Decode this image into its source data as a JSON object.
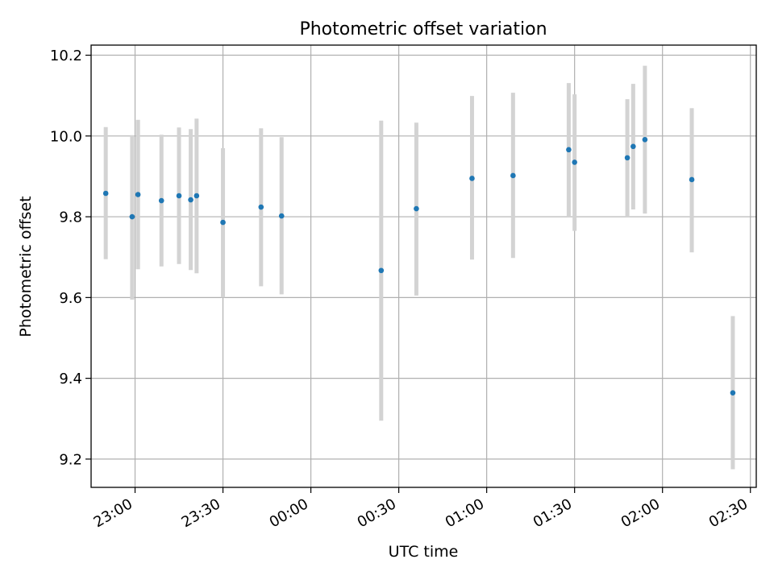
{
  "chart_data": {
    "type": "scatter",
    "title": "Photometric offset variation",
    "xlabel": "UTC time",
    "ylabel": "Photometric offset",
    "x_ticks": [
      "23:00",
      "23:30",
      "00:00",
      "00:30",
      "01:00",
      "01:30",
      "02:00",
      "02:30"
    ],
    "y_ticks": [
      "9.2",
      "9.4",
      "9.6",
      "9.8",
      "10.0",
      "10.2"
    ],
    "xlim": [
      "22:45",
      "02:32"
    ],
    "ylim": [
      9.13,
      10.225
    ],
    "grid": true,
    "series": [
      {
        "marker_color": "#1f77b4",
        "errorbar_color": "#d3d3d3",
        "points": [
          {
            "t": "22:50",
            "y": 9.858,
            "lo": 9.695,
            "hi": 10.022
          },
          {
            "t": "22:59",
            "y": 9.8,
            "lo": 9.595,
            "hi": 10.002
          },
          {
            "t": "23:01",
            "y": 9.855,
            "lo": 9.67,
            "hi": 10.04
          },
          {
            "t": "23:09",
            "y": 9.84,
            "lo": 9.677,
            "hi": 10.003
          },
          {
            "t": "23:15",
            "y": 9.852,
            "lo": 9.683,
            "hi": 10.021
          },
          {
            "t": "23:19",
            "y": 9.842,
            "lo": 9.668,
            "hi": 10.017
          },
          {
            "t": "23:21",
            "y": 9.852,
            "lo": 9.66,
            "hi": 10.043
          },
          {
            "t": "23:30",
            "y": 9.786,
            "lo": 9.6,
            "hi": 9.97
          },
          {
            "t": "23:43",
            "y": 9.824,
            "lo": 9.628,
            "hi": 10.019
          },
          {
            "t": "23:50",
            "y": 9.802,
            "lo": 9.608,
            "hi": 9.997
          },
          {
            "t": "00:24",
            "y": 9.667,
            "lo": 9.295,
            "hi": 10.038
          },
          {
            "t": "00:36",
            "y": 9.82,
            "lo": 9.605,
            "hi": 10.033
          },
          {
            "t": "00:55",
            "y": 9.895,
            "lo": 9.694,
            "hi": 10.099
          },
          {
            "t": "01:09",
            "y": 9.902,
            "lo": 9.698,
            "hi": 10.107
          },
          {
            "t": "01:28",
            "y": 9.966,
            "lo": 9.8,
            "hi": 10.131
          },
          {
            "t": "01:30",
            "y": 9.935,
            "lo": 9.765,
            "hi": 10.103
          },
          {
            "t": "01:48",
            "y": 9.946,
            "lo": 9.8,
            "hi": 10.091
          },
          {
            "t": "01:50",
            "y": 9.974,
            "lo": 9.818,
            "hi": 10.129
          },
          {
            "t": "01:54",
            "y": 9.991,
            "lo": 9.808,
            "hi": 10.174
          },
          {
            "t": "02:10",
            "y": 9.892,
            "lo": 9.712,
            "hi": 10.069
          },
          {
            "t": "02:24",
            "y": 9.364,
            "lo": 9.175,
            "hi": 9.554
          }
        ]
      }
    ]
  }
}
